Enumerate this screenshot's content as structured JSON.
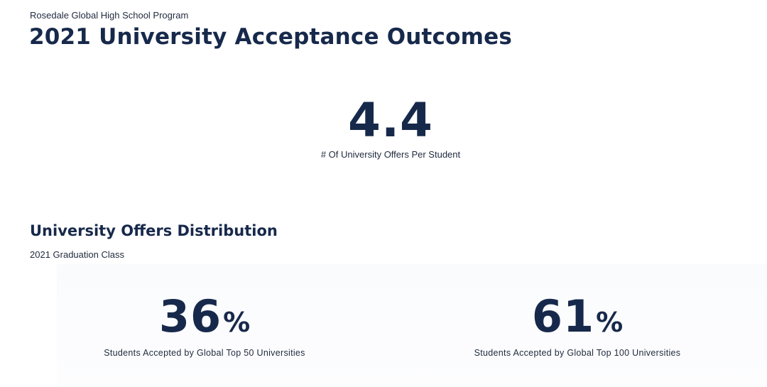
{
  "header": {
    "eyebrow": "Rosedale Global High School Program",
    "title": "2021 University Acceptance Outcomes"
  },
  "hero": {
    "value": "4.4",
    "caption": "# Of University Offers Per Student"
  },
  "distribution": {
    "title": "University Offers Distribution",
    "subtitle": "2021 Graduation Class",
    "stats": [
      {
        "value": "36",
        "unit": "%",
        "caption": "Students Accepted by Global Top 50 Universities"
      },
      {
        "value": "61",
        "unit": "%",
        "caption": "Students Accepted by Global Top 100 Universities"
      }
    ]
  },
  "colors": {
    "primary": "#17294b",
    "text": "#1f2a3d",
    "background": "#ffffff"
  }
}
